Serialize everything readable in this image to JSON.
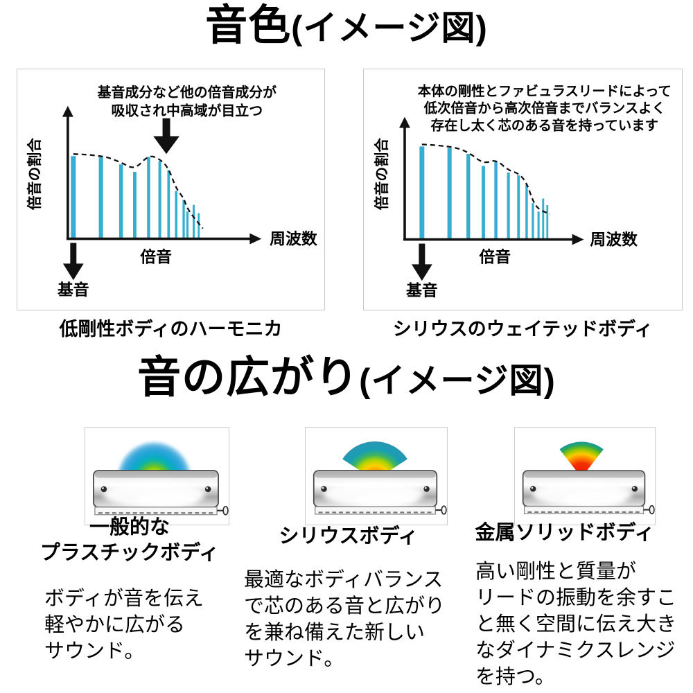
{
  "titles": {
    "tone": {
      "main": "音色",
      "sub": "(イメージ図)"
    },
    "spread": {
      "main": "音の広がり",
      "sub": "(イメージ図)"
    }
  },
  "chart_data": [
    {
      "type": "bar",
      "name": "low-rigidity-body-spectrum",
      "annotation": [
        "基音成分など他の倍音成分が",
        "吸収され中高域が目立つ"
      ],
      "ylabel": "倍音の割合",
      "xlabel": "周波数",
      "x_axis_annotation": "倍音",
      "fundamental_label": "基音",
      "caption": "低剛性ボディのハーモニカ",
      "x": [
        0,
        0.22,
        0.38,
        0.49,
        0.6,
        0.69,
        0.76,
        0.82,
        0.88,
        0.91,
        0.96,
        1.0
      ],
      "values": [
        1.0,
        0.99,
        0.9,
        0.81,
        0.99,
        0.94,
        0.83,
        0.58,
        0.47,
        0.33,
        0.41,
        0.31
      ],
      "envelope": true,
      "highlight_arrow": true,
      "bar_color": "#35aecf",
      "ylim": [
        0,
        1
      ],
      "grid": false,
      "legend": "none"
    },
    {
      "type": "bar",
      "name": "sirius-weighted-body-spectrum",
      "annotation": [
        "本体の剛性とファビュラスリードによって",
        "低次倍音から高次倍音までバランスよく",
        "存在し太く芯のある音を持っています"
      ],
      "ylabel": "倍音の割合",
      "xlabel": "周波数",
      "x_axis_annotation": "倍音",
      "fundamental_label": "基音",
      "caption": "シリウスのウェイテッドボディ",
      "x": [
        0,
        0.22,
        0.37,
        0.49,
        0.59,
        0.69,
        0.77,
        0.835,
        0.885,
        0.93,
        0.967,
        1.0
      ],
      "values": [
        1.0,
        0.985,
        0.92,
        0.79,
        0.84,
        0.72,
        0.69,
        0.59,
        0.39,
        0.3,
        0.44,
        0.37
      ],
      "envelope": true,
      "highlight_arrow": false,
      "bar_color": "#35aecf",
      "ylim": [
        0,
        1
      ],
      "grid": false,
      "legend": "none"
    }
  ],
  "spread": {
    "items": [
      {
        "caption": [
          "一般的な",
          "プラスチックボディ"
        ],
        "description": [
          "ボディが音を伝え",
          "軽やかに広がる",
          "サウンド。"
        ],
        "arc": {
          "shape": "dome",
          "half_angle": 90,
          "stops": [
            [
              0,
              "#e6ef00"
            ],
            [
              0.2,
              "#c6e300"
            ],
            [
              0.36,
              "#5cc11e"
            ],
            [
              0.52,
              "#00b4ae"
            ],
            [
              0.68,
              "#16a4d4"
            ],
            [
              0.86,
              "#3ba8dc"
            ],
            [
              1,
              "#7cc4e6",
              0.75
            ]
          ]
        }
      },
      {
        "caption": [
          "シリウスボディ"
        ],
        "description": [
          "最適なボディバランス",
          "で芯のある音と広がり",
          "を兼ね備えた新しい",
          "サウンド。"
        ],
        "arc": {
          "shape": "fan",
          "half_angle": 57,
          "stops": [
            [
              0,
              "#ff4a00"
            ],
            [
              0.22,
              "#ff8c00"
            ],
            [
              0.38,
              "#ffd200"
            ],
            [
              0.52,
              "#aed400"
            ],
            [
              0.65,
              "#3cb464"
            ],
            [
              0.8,
              "#189eb4"
            ],
            [
              1,
              "#2a96b4"
            ]
          ]
        }
      },
      {
        "caption": [
          "金属ソリッドボディ"
        ],
        "description": [
          "高い剛性と質量が",
          "リードの振動を余すこ",
          "と無く空間に伝え大き",
          "なダイナミクスレンジ",
          "を持つ。"
        ],
        "arc": {
          "shape": "fan",
          "half_angle": 38,
          "stops": [
            [
              0,
              "#ee1200"
            ],
            [
              0.4,
              "#f23000"
            ],
            [
              0.53,
              "#ff7a00"
            ],
            [
              0.66,
              "#ffc800"
            ],
            [
              0.78,
              "#9cc800"
            ],
            [
              0.9,
              "#30aa50"
            ],
            [
              1,
              "#1896a4"
            ]
          ]
        }
      }
    ]
  },
  "colors": {
    "bar": "#35aecf",
    "axis": "#111111",
    "panel_border": "#c9c9c9",
    "text": "#000000"
  }
}
